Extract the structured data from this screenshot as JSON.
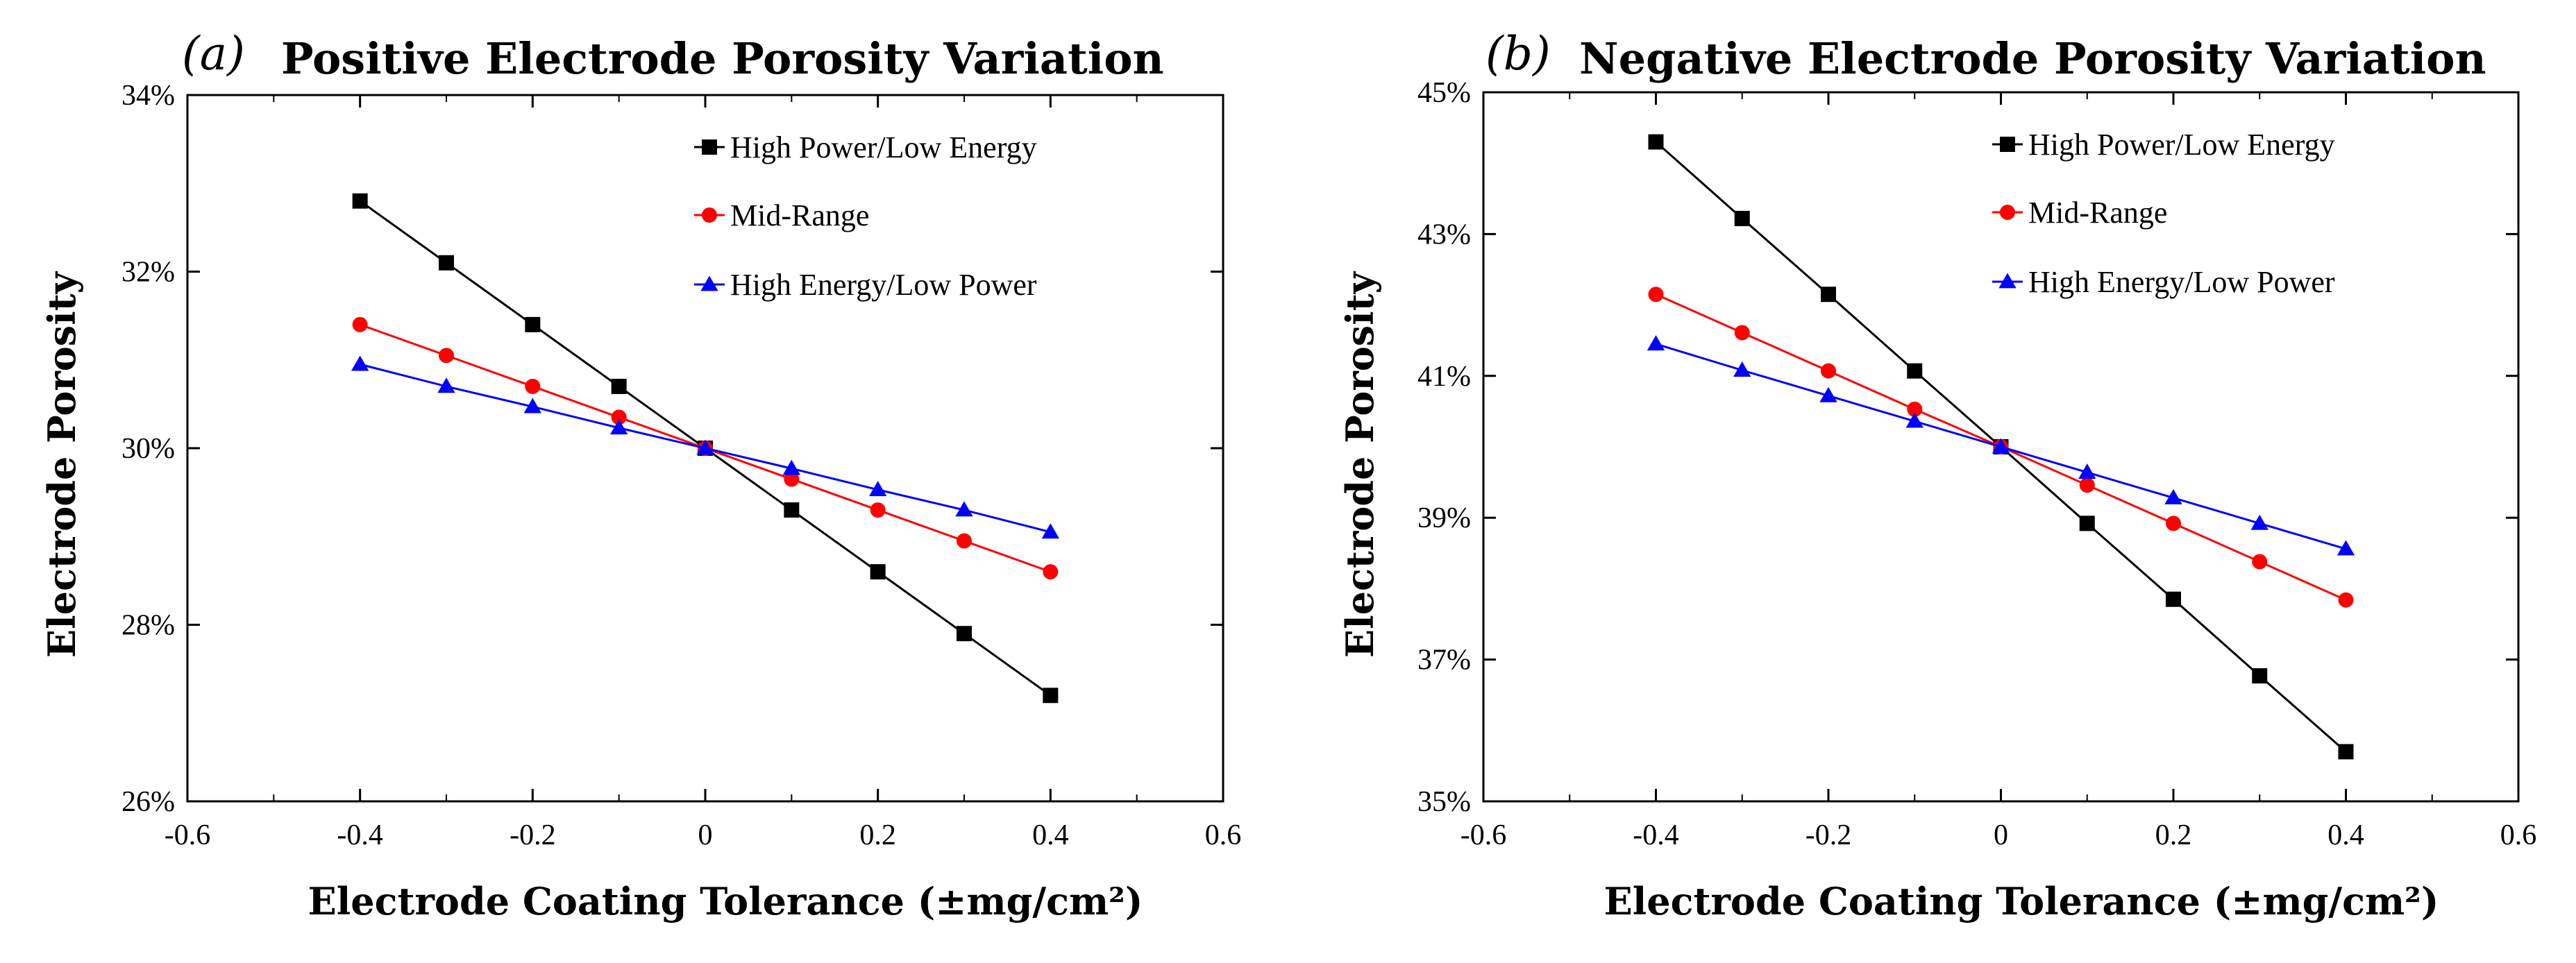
{
  "chart_data": [
    {
      "type": "line",
      "panel": "(a)",
      "title": "Positive Electrode Porosity Variation",
      "xlabel": "Electrode Coating Tolerance (±mg/cm²)",
      "ylabel": "Electrode Porosity",
      "xlim": [
        -0.6,
        0.6
      ],
      "ylim": [
        26,
        34
      ],
      "x_ticks": [
        -0.6,
        -0.4,
        -0.2,
        0,
        0.2,
        0.4,
        0.6
      ],
      "x_tick_labels": [
        "-0.6",
        "-0.4",
        "-0.2",
        "0",
        "0.2",
        "0.4",
        "0.6"
      ],
      "y_ticks": [
        26,
        28,
        30,
        32,
        34
      ],
      "y_tick_labels": [
        "26%",
        "28%",
        "30%",
        "32%",
        "34%"
      ],
      "legend_position": "top-right",
      "x": [
        -0.4,
        -0.3,
        -0.2,
        -0.1,
        0,
        0.1,
        0.2,
        0.3,
        0.4
      ],
      "series": [
        {
          "name": "High Power/Low Energy",
          "color": "#000000",
          "marker": "square",
          "values": [
            32.8,
            32.1,
            31.4,
            30.7,
            30.0,
            29.3,
            28.6,
            27.9,
            27.2
          ]
        },
        {
          "name": "Mid-Range",
          "color": "#ff0000",
          "marker": "circle",
          "values": [
            31.4,
            31.05,
            30.7,
            30.35,
            30.0,
            29.65,
            29.3,
            28.95,
            28.6
          ]
        },
        {
          "name": "High Energy/Low Power",
          "color": "#0000ff",
          "marker": "triangle",
          "values": [
            30.95,
            30.7,
            30.47,
            30.23,
            30.0,
            29.77,
            29.53,
            29.3,
            29.05
          ]
        }
      ]
    },
    {
      "type": "line",
      "panel": "(b)",
      "title": "Negative Electrode Porosity Variation",
      "xlabel": "Electrode Coating Tolerance (±mg/cm²)",
      "ylabel": "Electrode Porosity",
      "xlim": [
        -0.6,
        0.6
      ],
      "ylim": [
        35,
        45
      ],
      "x_ticks": [
        -0.6,
        -0.4,
        -0.2,
        0,
        0.2,
        0.4,
        0.6
      ],
      "x_tick_labels": [
        "-0.6",
        "-0.4",
        "-0.2",
        "0",
        "0.2",
        "0.4",
        "0.6"
      ],
      "y_ticks": [
        35,
        37,
        39,
        41,
        43,
        45
      ],
      "y_tick_labels": [
        "35%",
        "37%",
        "39%",
        "41%",
        "43%",
        "45%"
      ],
      "legend_position": "top-right",
      "x": [
        -0.4,
        -0.3,
        -0.2,
        -0.1,
        0,
        0.1,
        0.2,
        0.3,
        0.4
      ],
      "series": [
        {
          "name": "High Power/Low Energy",
          "color": "#000000",
          "marker": "square",
          "values": [
            44.3,
            43.22,
            42.15,
            41.07,
            40.0,
            38.92,
            37.85,
            36.77,
            35.7
          ]
        },
        {
          "name": "Mid-Range",
          "color": "#ff0000",
          "marker": "circle",
          "values": [
            42.15,
            41.61,
            41.07,
            40.53,
            40.0,
            39.46,
            38.92,
            38.38,
            37.84
          ]
        },
        {
          "name": "High Energy/Low Power",
          "color": "#0000ff",
          "marker": "triangle",
          "values": [
            41.45,
            41.08,
            40.72,
            40.36,
            40.0,
            39.64,
            39.28,
            38.92,
            38.56
          ]
        }
      ]
    }
  ]
}
